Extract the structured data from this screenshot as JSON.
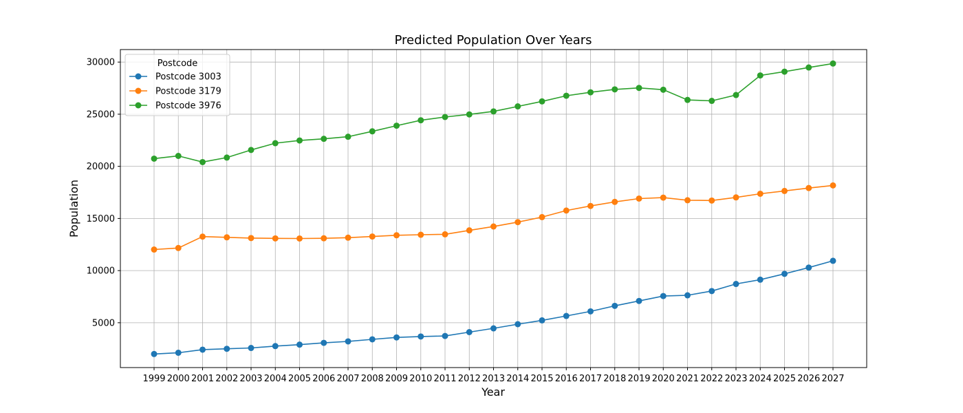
{
  "chart_data": {
    "type": "line",
    "title": "Predicted Population Over Years",
    "xlabel": "Year",
    "ylabel": "Population",
    "x": [
      "1999",
      "2000",
      "2001",
      "2002",
      "2003",
      "2004",
      "2005",
      "2006",
      "2007",
      "2008",
      "2009",
      "2010",
      "2011",
      "2012",
      "2013",
      "2014",
      "2015",
      "2016",
      "2017",
      "2018",
      "2019",
      "2020",
      "2021",
      "2022",
      "2023",
      "2024",
      "2025",
      "2026",
      "2027"
    ],
    "y_ticks": [
      5000,
      10000,
      15000,
      20000,
      25000,
      30000
    ],
    "ylim": [
      700,
      31200
    ],
    "grid": true,
    "legend": {
      "title": "Postcode",
      "placement": "top-left"
    },
    "series": [
      {
        "name": "Postcode 3003",
        "color": "#1f77b4",
        "values": [
          2000,
          2120,
          2420,
          2500,
          2580,
          2760,
          2900,
          3070,
          3210,
          3410,
          3590,
          3680,
          3730,
          4100,
          4460,
          4860,
          5230,
          5650,
          6090,
          6620,
          7090,
          7560,
          7630,
          8040,
          8720,
          9130,
          9690,
          10290,
          10940
        ]
      },
      {
        "name": "Postcode 3179",
        "color": "#ff7f0e",
        "values": [
          12020,
          12170,
          13260,
          13190,
          13120,
          13090,
          13080,
          13100,
          13160,
          13270,
          13390,
          13440,
          13480,
          13860,
          14230,
          14650,
          15130,
          15760,
          16200,
          16590,
          16910,
          17000,
          16750,
          16720,
          17020,
          17370,
          17640,
          17920,
          18170
        ]
      },
      {
        "name": "Postcode 3976",
        "color": "#2ca02c",
        "values": [
          20740,
          21000,
          20410,
          20840,
          21570,
          22220,
          22480,
          22640,
          22840,
          23360,
          23900,
          24420,
          24730,
          24980,
          25270,
          25750,
          26230,
          26770,
          27100,
          27380,
          27520,
          27350,
          26370,
          26280,
          26840,
          28720,
          29080,
          29480,
          29860
        ]
      }
    ]
  }
}
